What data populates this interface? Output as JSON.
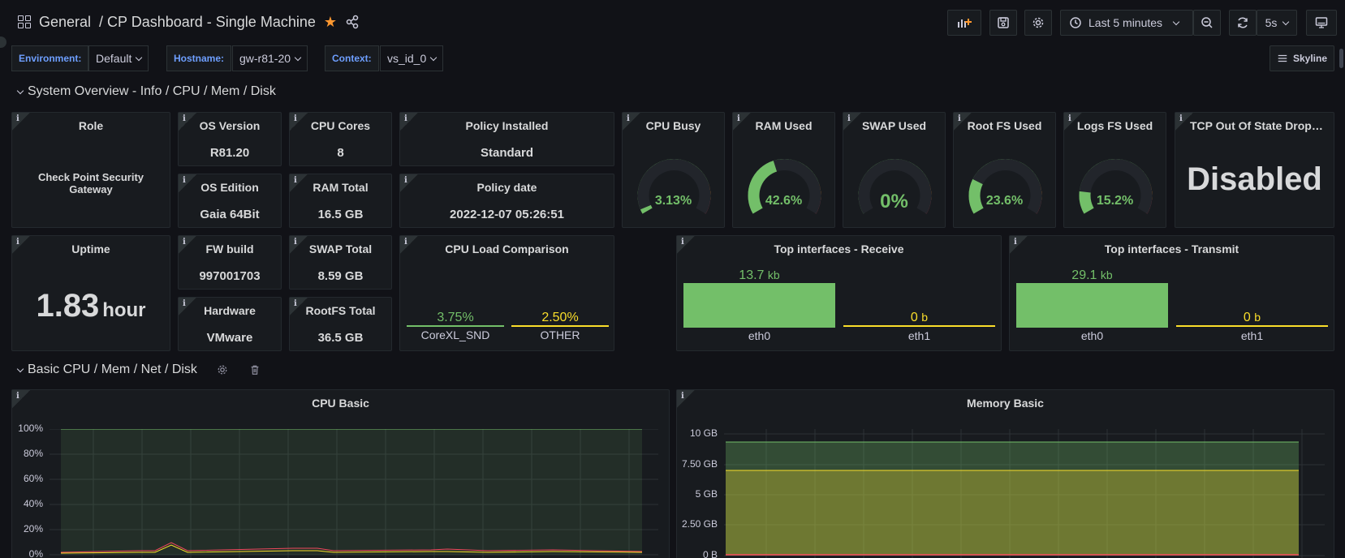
{
  "nav": {
    "section": "General",
    "dashboard": "/ CP Dashboard - Single Machine",
    "time_range": "Last 5 minutes",
    "refresh_interval": "5s"
  },
  "variables": [
    {
      "label": "Environment:",
      "value": "Default"
    },
    {
      "label": "Hostname:",
      "value": "gw-r81-20"
    },
    {
      "label": "Context:",
      "value": "vs_id_0"
    }
  ],
  "skyline_label": "Skyline",
  "rows": {
    "overview": "System Overview - Info / CPU / Mem / Disk",
    "basic": "Basic CPU / Mem / Net / Disk"
  },
  "stats": {
    "role": {
      "title": "Role",
      "value": "Check Point Security Gateway"
    },
    "os_version": {
      "title": "OS Version",
      "value": "R81.20"
    },
    "cpu_cores": {
      "title": "CPU Cores",
      "value": "8"
    },
    "policy_installed": {
      "title": "Policy Installed",
      "value": "Standard"
    },
    "os_edition": {
      "title": "OS Edition",
      "value": "Gaia 64Bit"
    },
    "ram_total": {
      "title": "RAM Total",
      "value": "16.5 GB"
    },
    "policy_date": {
      "title": "Policy date",
      "value": "2022-12-07 05:26:51"
    },
    "uptime": {
      "title": "Uptime",
      "value": "1.83",
      "unit": "hour"
    },
    "fw_build": {
      "title": "FW build",
      "value": "997001703"
    },
    "swap_total": {
      "title": "SWAP Total",
      "value": "8.59 GB"
    },
    "hardware": {
      "title": "Hardware",
      "value": "VMware"
    },
    "rootfs_total": {
      "title": "RootFS Total",
      "value": "36.5 GB"
    },
    "tcp_drops": {
      "title": "TCP Out Of State Drops...",
      "value": "Disabled"
    }
  },
  "gauges": [
    {
      "title": "CPU Busy",
      "value": "3.13%",
      "percent": 3.13
    },
    {
      "title": "RAM Used",
      "value": "42.6%",
      "percent": 42.6
    },
    {
      "title": "SWAP Used",
      "value": "0%",
      "percent": 0
    },
    {
      "title": "Root FS Used",
      "value": "23.6%",
      "percent": 23.6
    },
    {
      "title": "Logs FS Used",
      "value": "15.2%",
      "percent": 15.2
    }
  ],
  "cpu_load": {
    "title": "CPU Load Comparison",
    "bars": [
      {
        "value": "3.75%",
        "label": "CoreXL_SND",
        "color": "#73bf69"
      },
      {
        "value": "2.50%",
        "label": "OTHER",
        "color": "#fade2a"
      }
    ]
  },
  "top_receive": {
    "title": "Top interfaces - Receive",
    "bars": [
      {
        "value": "13.7",
        "unit": "kb",
        "label": "eth0",
        "color": "#73bf69",
        "fraction": 1
      },
      {
        "value": "0",
        "unit": "b",
        "label": "eth1",
        "color": "#fade2a",
        "fraction": 0
      }
    ]
  },
  "top_transmit": {
    "title": "Top interfaces - Transmit",
    "bars": [
      {
        "value": "29.1",
        "unit": "kb",
        "label": "eth0",
        "color": "#73bf69",
        "fraction": 1
      },
      {
        "value": "0",
        "unit": "b",
        "label": "eth1",
        "color": "#fade2a",
        "fraction": 0
      }
    ]
  },
  "cpu_basic": {
    "title": "CPU Basic",
    "y_ticks": [
      "100%",
      "80%",
      "60%",
      "40%",
      "20%",
      "0%"
    ]
  },
  "memory_basic": {
    "title": "Memory Basic",
    "y_ticks": [
      "10 GB",
      "7.50 GB",
      "5 GB",
      "2.50 GB",
      "0 B"
    ]
  },
  "colors": {
    "green": "#73bf69",
    "yellow": "#fade2a",
    "orange": "#ff9830",
    "red": "#f2495c",
    "blue": "#6e9fff"
  }
}
